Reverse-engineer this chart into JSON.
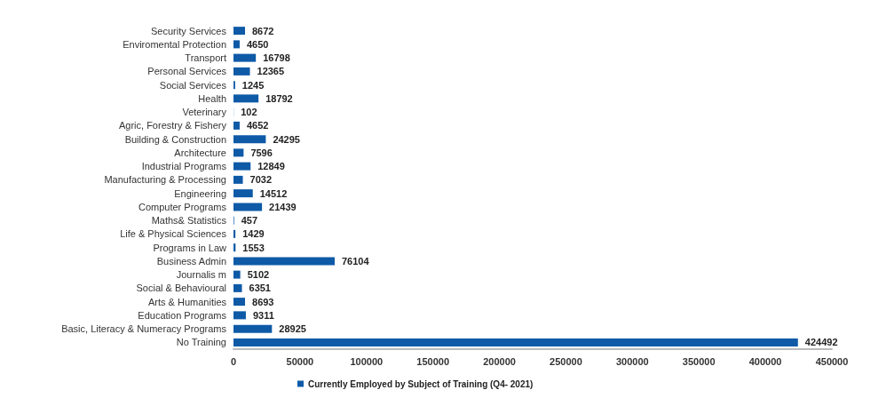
{
  "chart_data": {
    "type": "bar",
    "orientation": "horizontal",
    "categories": [
      "Security Services",
      "Enviromental Protection",
      "Transport",
      "Personal Services",
      "Social Services",
      "Health",
      "Veterinary",
      "Agric, Forestry & Fishery",
      "Building & Construction",
      "Architecture",
      "Industrial Programs",
      "Manufacturing & Processing",
      "Engineering",
      "Computer Programs",
      "Maths& Statistics",
      "Life & Physical Sciences",
      "Programs in Law",
      "Business Admin",
      "Journalis m",
      "Social & Behavioural",
      "Arts & Humanities",
      "Education Programs",
      "Basic, Literacy & Numeracy Programs",
      "No Training"
    ],
    "series": [
      {
        "name": "Currently Employed by Subject of Training (Q4- 2021)",
        "color": "#0e5aa7",
        "values": [
          8672,
          4650,
          16798,
          12365,
          1245,
          18792,
          102,
          4652,
          24295,
          7596,
          12849,
          7032,
          14512,
          21439,
          457,
          1429,
          1553,
          76104,
          5102,
          6351,
          8693,
          9311,
          28925,
          424492
        ]
      }
    ],
    "xlim": [
      0,
      450000
    ],
    "xticks": [
      0,
      50000,
      100000,
      150000,
      200000,
      250000,
      300000,
      350000,
      400000,
      450000
    ],
    "data_labels": true,
    "grid": false,
    "legend": "bottom"
  }
}
